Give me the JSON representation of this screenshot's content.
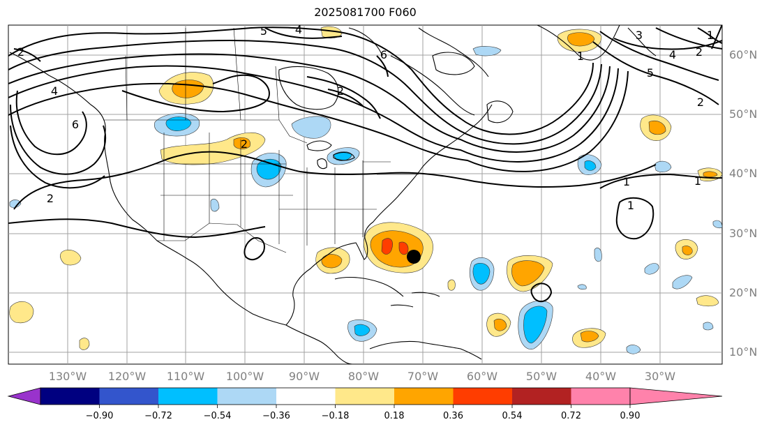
{
  "title": "2025081700 F060",
  "map": {
    "projection": "plate-carree",
    "lon_range": [
      -140,
      -15
    ],
    "lat_range": [
      8,
      65
    ],
    "gridlines": true,
    "lat_labels": [
      "60°N",
      "50°N",
      "40°N",
      "30°N",
      "20°N",
      "10°N"
    ],
    "lon_labels": [
      "130°W",
      "120°W",
      "110°W",
      "100°W",
      "90°W",
      "80°W",
      "70°W",
      "60°W",
      "50°W",
      "40°W",
      "30°W"
    ],
    "storm_marker": {
      "lon": -71,
      "lat": 26,
      "color": "#000000"
    }
  },
  "contour_labels": [
    "5",
    "4",
    "6",
    "2",
    "3",
    "4",
    "5",
    "2",
    "1",
    "2",
    "6",
    "2",
    "2",
    "4",
    "1",
    "1",
    "2",
    "1",
    "1"
  ],
  "colorbar": {
    "ticks": [
      "−0.90",
      "−0.72",
      "−0.54",
      "−0.36",
      "−0.18",
      "0.18",
      "0.36",
      "0.54",
      "0.72",
      "0.90"
    ],
    "colors": [
      "#9933cc",
      "#000080",
      "#3355cc",
      "#00bfff",
      "#add8f5",
      "#ffffff",
      "#ffe88a",
      "#ffa500",
      "#ff3d00",
      "#b22222",
      "#ff82ab"
    ],
    "extend": "both"
  }
}
